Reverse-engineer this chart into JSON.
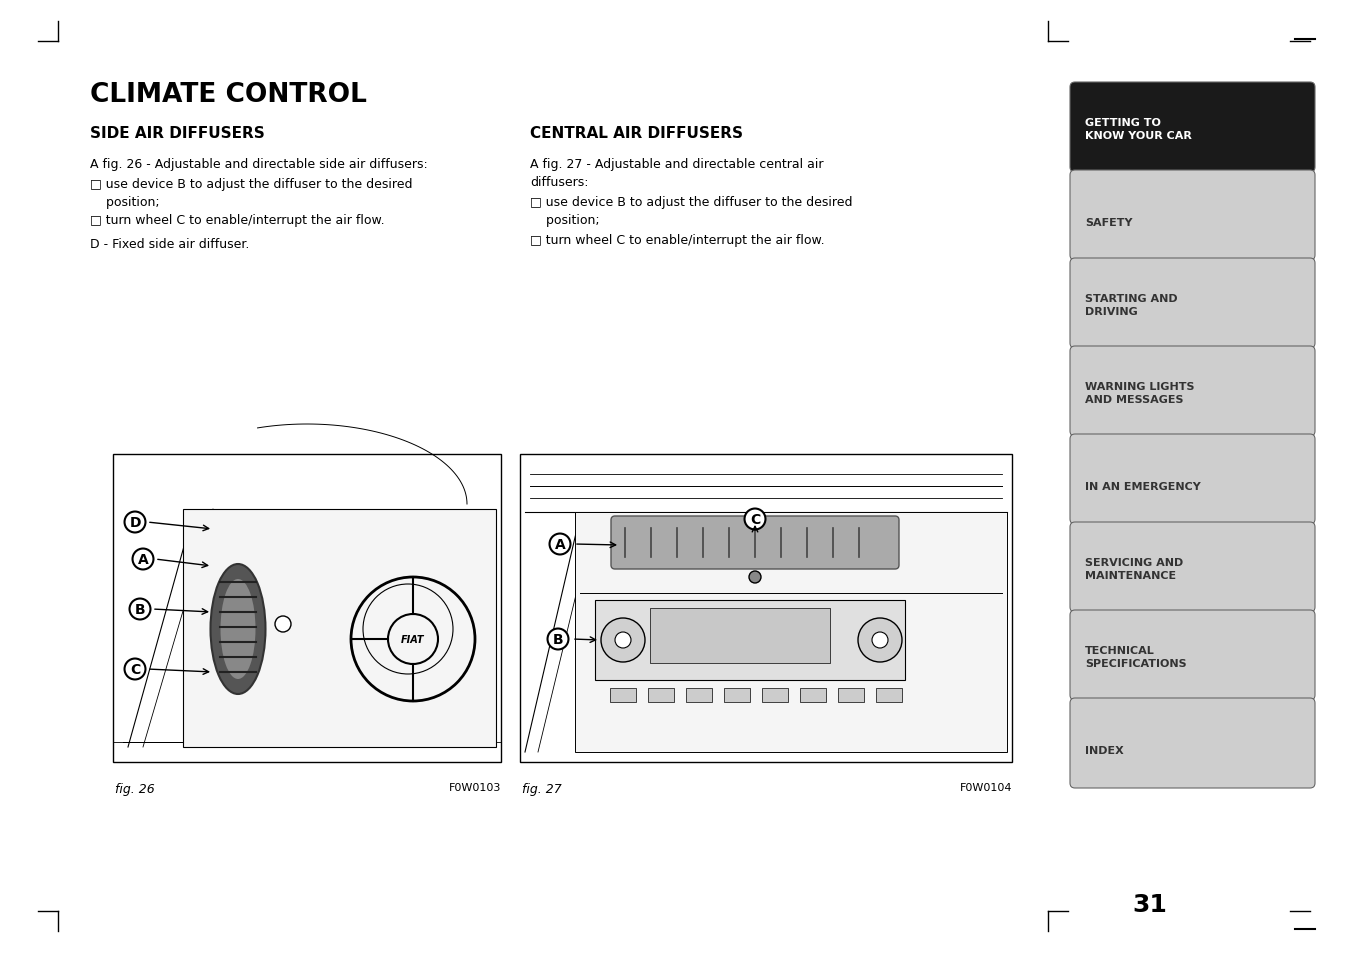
{
  "bg_color": "#ffffff",
  "page_width": 13.5,
  "page_height": 9.54,
  "main_title": "CLIMATE CONTROL",
  "left_section_title": "SIDE AIR DIFFUSERS",
  "right_section_title": "CENTRAL AIR DIFFUSERS",
  "left_text_line1": "A fig. 26 - Adjustable and directable side air diffusers:",
  "left_bullet1_line1": "□ use device B to adjust the diffuser to the desired",
  "left_bullet1_line2": "    position;",
  "left_bullet2": "□ turn wheel C to enable/interrupt the air flow.",
  "left_line3": "D - Fixed side air diffuser.",
  "right_text_line1": "A fig. 27 - Adjustable and directable central air",
  "right_text_line2": "diffusers:",
  "right_bullet1_line1": "□ use device B to adjust the diffuser to the desired",
  "right_bullet1_line2": "    position;",
  "right_bullet2": "□ turn wheel C to enable/interrupt the air flow.",
  "fig26_caption": "fig. 26",
  "fig26_code": "F0W0103",
  "fig27_caption": "fig. 27",
  "fig27_code": "F0W0104",
  "sidebar_items": [
    {
      "text": "GETTING TO\nKNOW YOUR CAR",
      "active": true
    },
    {
      "text": "SAFETY",
      "active": false
    },
    {
      "text": "STARTING AND\nDRIVING",
      "active": false
    },
    {
      "text": "WARNING LIGHTS\nAND MESSAGES",
      "active": false
    },
    {
      "text": "IN AN EMERGENCY",
      "active": false
    },
    {
      "text": "SERVICING AND\nMAINTENANCE",
      "active": false
    },
    {
      "text": "TECHNICAL\nSPECIFICATIONS",
      "active": false
    },
    {
      "text": "INDEX",
      "active": false
    }
  ],
  "page_number": "31",
  "sidebar_bg_active": "#1a1a1a",
  "sidebar_bg_inactive": "#cecece",
  "sidebar_text_active": "#ffffff",
  "sidebar_text_inactive": "#333333"
}
